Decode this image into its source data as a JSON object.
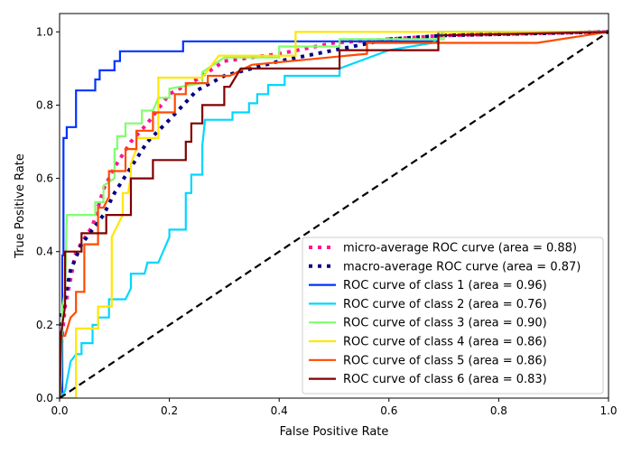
{
  "chart_data": {
    "type": "line",
    "title": "",
    "xlabel": "False Positive Rate",
    "ylabel": "True Positive Rate",
    "xlim": [
      0,
      1
    ],
    "ylim": [
      0,
      1.05
    ],
    "xticks": [
      "0.0",
      "0.2",
      "0.4",
      "0.6",
      "0.8",
      "1.0"
    ],
    "yticks": [
      "0.0",
      "0.2",
      "0.4",
      "0.6",
      "0.8",
      "1.0"
    ],
    "grid": false,
    "legend_position": "bottom-right",
    "series": [
      {
        "name": "micro-average ROC curve (area = 0.88)",
        "color": "#ff1493",
        "style": "dotted",
        "points": [
          [
            0,
            0
          ],
          [
            0,
            0.1
          ],
          [
            0.01,
            0.25
          ],
          [
            0.03,
            0.4
          ],
          [
            0.06,
            0.47
          ],
          [
            0.08,
            0.57
          ],
          [
            0.1,
            0.63
          ],
          [
            0.13,
            0.7
          ],
          [
            0.16,
            0.75
          ],
          [
            0.2,
            0.83
          ],
          [
            0.25,
            0.87
          ],
          [
            0.3,
            0.92
          ],
          [
            0.4,
            0.94
          ],
          [
            0.5,
            0.97
          ],
          [
            0.7,
            0.99
          ],
          [
            1,
            1
          ]
        ]
      },
      {
        "name": "macro-average ROC curve (area = 0.87)",
        "color": "#000080",
        "style": "dotted",
        "points": [
          [
            0,
            0
          ],
          [
            0,
            0.2
          ],
          [
            0.02,
            0.35
          ],
          [
            0.04,
            0.42
          ],
          [
            0.08,
            0.5
          ],
          [
            0.1,
            0.56
          ],
          [
            0.13,
            0.63
          ],
          [
            0.16,
            0.7
          ],
          [
            0.2,
            0.76
          ],
          [
            0.25,
            0.84
          ],
          [
            0.3,
            0.88
          ],
          [
            0.4,
            0.92
          ],
          [
            0.5,
            0.95
          ],
          [
            0.6,
            0.98
          ],
          [
            0.7,
            0.99
          ],
          [
            1,
            1
          ]
        ]
      },
      {
        "name": "ROC curve of class 1 (area = 0.96)",
        "color": "#0033ff",
        "style": "solid",
        "points": [
          [
            0,
            0
          ],
          [
            0.005,
            0
          ],
          [
            0.005,
            0.39
          ],
          [
            0.007,
            0.39
          ],
          [
            0.007,
            0.71
          ],
          [
            0.013,
            0.71
          ],
          [
            0.013,
            0.74
          ],
          [
            0.03,
            0.74
          ],
          [
            0.03,
            0.84
          ],
          [
            0.065,
            0.84
          ],
          [
            0.065,
            0.87
          ],
          [
            0.073,
            0.87
          ],
          [
            0.073,
            0.895
          ],
          [
            0.1,
            0.895
          ],
          [
            0.1,
            0.92
          ],
          [
            0.11,
            0.92
          ],
          [
            0.11,
            0.947
          ],
          [
            0.225,
            0.947
          ],
          [
            0.225,
            0.974
          ],
          [
            0.69,
            0.974
          ],
          [
            0.69,
            1
          ],
          [
            1,
            1
          ]
        ]
      },
      {
        "name": "ROC curve of class 2 (area = 0.76)",
        "color": "#00d7ff",
        "style": "solid",
        "points": [
          [
            0,
            0
          ],
          [
            0.01,
            0.02
          ],
          [
            0.02,
            0.1
          ],
          [
            0.03,
            0.12
          ],
          [
            0.04,
            0.12
          ],
          [
            0.04,
            0.15
          ],
          [
            0.06,
            0.15
          ],
          [
            0.06,
            0.2
          ],
          [
            0.07,
            0.2
          ],
          [
            0.07,
            0.22
          ],
          [
            0.09,
            0.22
          ],
          [
            0.09,
            0.27
          ],
          [
            0.12,
            0.27
          ],
          [
            0.13,
            0.3
          ],
          [
            0.13,
            0.34
          ],
          [
            0.155,
            0.34
          ],
          [
            0.16,
            0.37
          ],
          [
            0.18,
            0.37
          ],
          [
            0.2,
            0.44
          ],
          [
            0.2,
            0.46
          ],
          [
            0.23,
            0.46
          ],
          [
            0.23,
            0.56
          ],
          [
            0.24,
            0.56
          ],
          [
            0.24,
            0.61
          ],
          [
            0.26,
            0.61
          ],
          [
            0.26,
            0.69
          ],
          [
            0.265,
            0.76
          ],
          [
            0.315,
            0.76
          ],
          [
            0.315,
            0.78
          ],
          [
            0.345,
            0.78
          ],
          [
            0.345,
            0.805
          ],
          [
            0.36,
            0.805
          ],
          [
            0.36,
            0.83
          ],
          [
            0.38,
            0.83
          ],
          [
            0.38,
            0.855
          ],
          [
            0.41,
            0.855
          ],
          [
            0.41,
            0.88
          ],
          [
            0.51,
            0.88
          ],
          [
            0.51,
            0.9
          ],
          [
            0.6,
            0.95
          ],
          [
            0.68,
            0.97
          ],
          [
            0.7,
            1
          ],
          [
            1,
            1
          ]
        ]
      },
      {
        "name": "ROC curve of class 3 (area = 0.90)",
        "color": "#7fff6a",
        "style": "solid",
        "points": [
          [
            0,
            0
          ],
          [
            0.003,
            0.05
          ],
          [
            0.005,
            0.25
          ],
          [
            0.01,
            0.29
          ],
          [
            0.013,
            0.5
          ],
          [
            0.065,
            0.5
          ],
          [
            0.065,
            0.535
          ],
          [
            0.08,
            0.535
          ],
          [
            0.08,
            0.58
          ],
          [
            0.1,
            0.6
          ],
          [
            0.1,
            0.68
          ],
          [
            0.105,
            0.68
          ],
          [
            0.105,
            0.715
          ],
          [
            0.12,
            0.715
          ],
          [
            0.12,
            0.75
          ],
          [
            0.15,
            0.75
          ],
          [
            0.15,
            0.785
          ],
          [
            0.17,
            0.785
          ],
          [
            0.18,
            0.82
          ],
          [
            0.2,
            0.82
          ],
          [
            0.2,
            0.845
          ],
          [
            0.26,
            0.86
          ],
          [
            0.26,
            0.89
          ],
          [
            0.3,
            0.93
          ],
          [
            0.4,
            0.93
          ],
          [
            0.4,
            0.96
          ],
          [
            0.51,
            0.96
          ],
          [
            0.51,
            0.98
          ],
          [
            0.7,
            0.98
          ],
          [
            0.7,
            1
          ],
          [
            1,
            1
          ]
        ]
      },
      {
        "name": "ROC curve of class 4 (area = 0.86)",
        "color": "#ffe600",
        "style": "solid",
        "points": [
          [
            0,
            0
          ],
          [
            0.03,
            0
          ],
          [
            0.03,
            0.19
          ],
          [
            0.07,
            0.19
          ],
          [
            0.07,
            0.25
          ],
          [
            0.095,
            0.25
          ],
          [
            0.095,
            0.44
          ],
          [
            0.115,
            0.5
          ],
          [
            0.115,
            0.56
          ],
          [
            0.125,
            0.56
          ],
          [
            0.13,
            0.61
          ],
          [
            0.13,
            0.64
          ],
          [
            0.14,
            0.68
          ],
          [
            0.14,
            0.71
          ],
          [
            0.18,
            0.71
          ],
          [
            0.18,
            0.875
          ],
          [
            0.26,
            0.875
          ],
          [
            0.29,
            0.935
          ],
          [
            0.43,
            0.935
          ],
          [
            0.43,
            1
          ],
          [
            1,
            1
          ]
        ]
      },
      {
        "name": "ROC curve of class 5 (area = 0.86)",
        "color": "#ff4a00",
        "style": "solid",
        "points": [
          [
            0,
            0
          ],
          [
            0.002,
            0.17
          ],
          [
            0.01,
            0.17
          ],
          [
            0.02,
            0.22
          ],
          [
            0.03,
            0.235
          ],
          [
            0.03,
            0.29
          ],
          [
            0.045,
            0.29
          ],
          [
            0.045,
            0.42
          ],
          [
            0.07,
            0.42
          ],
          [
            0.07,
            0.52
          ],
          [
            0.08,
            0.52
          ],
          [
            0.09,
            0.55
          ],
          [
            0.09,
            0.62
          ],
          [
            0.12,
            0.62
          ],
          [
            0.12,
            0.68
          ],
          [
            0.14,
            0.68
          ],
          [
            0.14,
            0.73
          ],
          [
            0.17,
            0.73
          ],
          [
            0.17,
            0.78
          ],
          [
            0.21,
            0.78
          ],
          [
            0.21,
            0.83
          ],
          [
            0.23,
            0.83
          ],
          [
            0.23,
            0.86
          ],
          [
            0.27,
            0.86
          ],
          [
            0.27,
            0.88
          ],
          [
            0.31,
            0.88
          ],
          [
            0.35,
            0.91
          ],
          [
            0.56,
            0.94
          ],
          [
            0.56,
            0.97
          ],
          [
            0.87,
            0.97
          ],
          [
            1,
            1
          ]
        ]
      },
      {
        "name": "ROC curve of class 6 (area = 0.83)",
        "color": "#800000",
        "style": "solid",
        "points": [
          [
            0,
            0
          ],
          [
            0.003,
            0.18
          ],
          [
            0.005,
            0.2
          ],
          [
            0.01,
            0.25
          ],
          [
            0.01,
            0.4
          ],
          [
            0.04,
            0.4
          ],
          [
            0.04,
            0.45
          ],
          [
            0.085,
            0.45
          ],
          [
            0.085,
            0.5
          ],
          [
            0.13,
            0.5
          ],
          [
            0.13,
            0.6
          ],
          [
            0.17,
            0.6
          ],
          [
            0.17,
            0.65
          ],
          [
            0.23,
            0.65
          ],
          [
            0.23,
            0.7
          ],
          [
            0.24,
            0.7
          ],
          [
            0.24,
            0.75
          ],
          [
            0.26,
            0.75
          ],
          [
            0.26,
            0.8
          ],
          [
            0.3,
            0.8
          ],
          [
            0.3,
            0.85
          ],
          [
            0.31,
            0.85
          ],
          [
            0.33,
            0.9
          ],
          [
            0.51,
            0.9
          ],
          [
            0.51,
            0.95
          ],
          [
            0.69,
            0.95
          ],
          [
            0.69,
            0.99
          ],
          [
            1,
            1
          ]
        ]
      }
    ],
    "reference_line": {
      "points": [
        [
          0,
          0
        ],
        [
          1,
          1
        ]
      ],
      "color": "#000000",
      "style": "dashed"
    }
  }
}
